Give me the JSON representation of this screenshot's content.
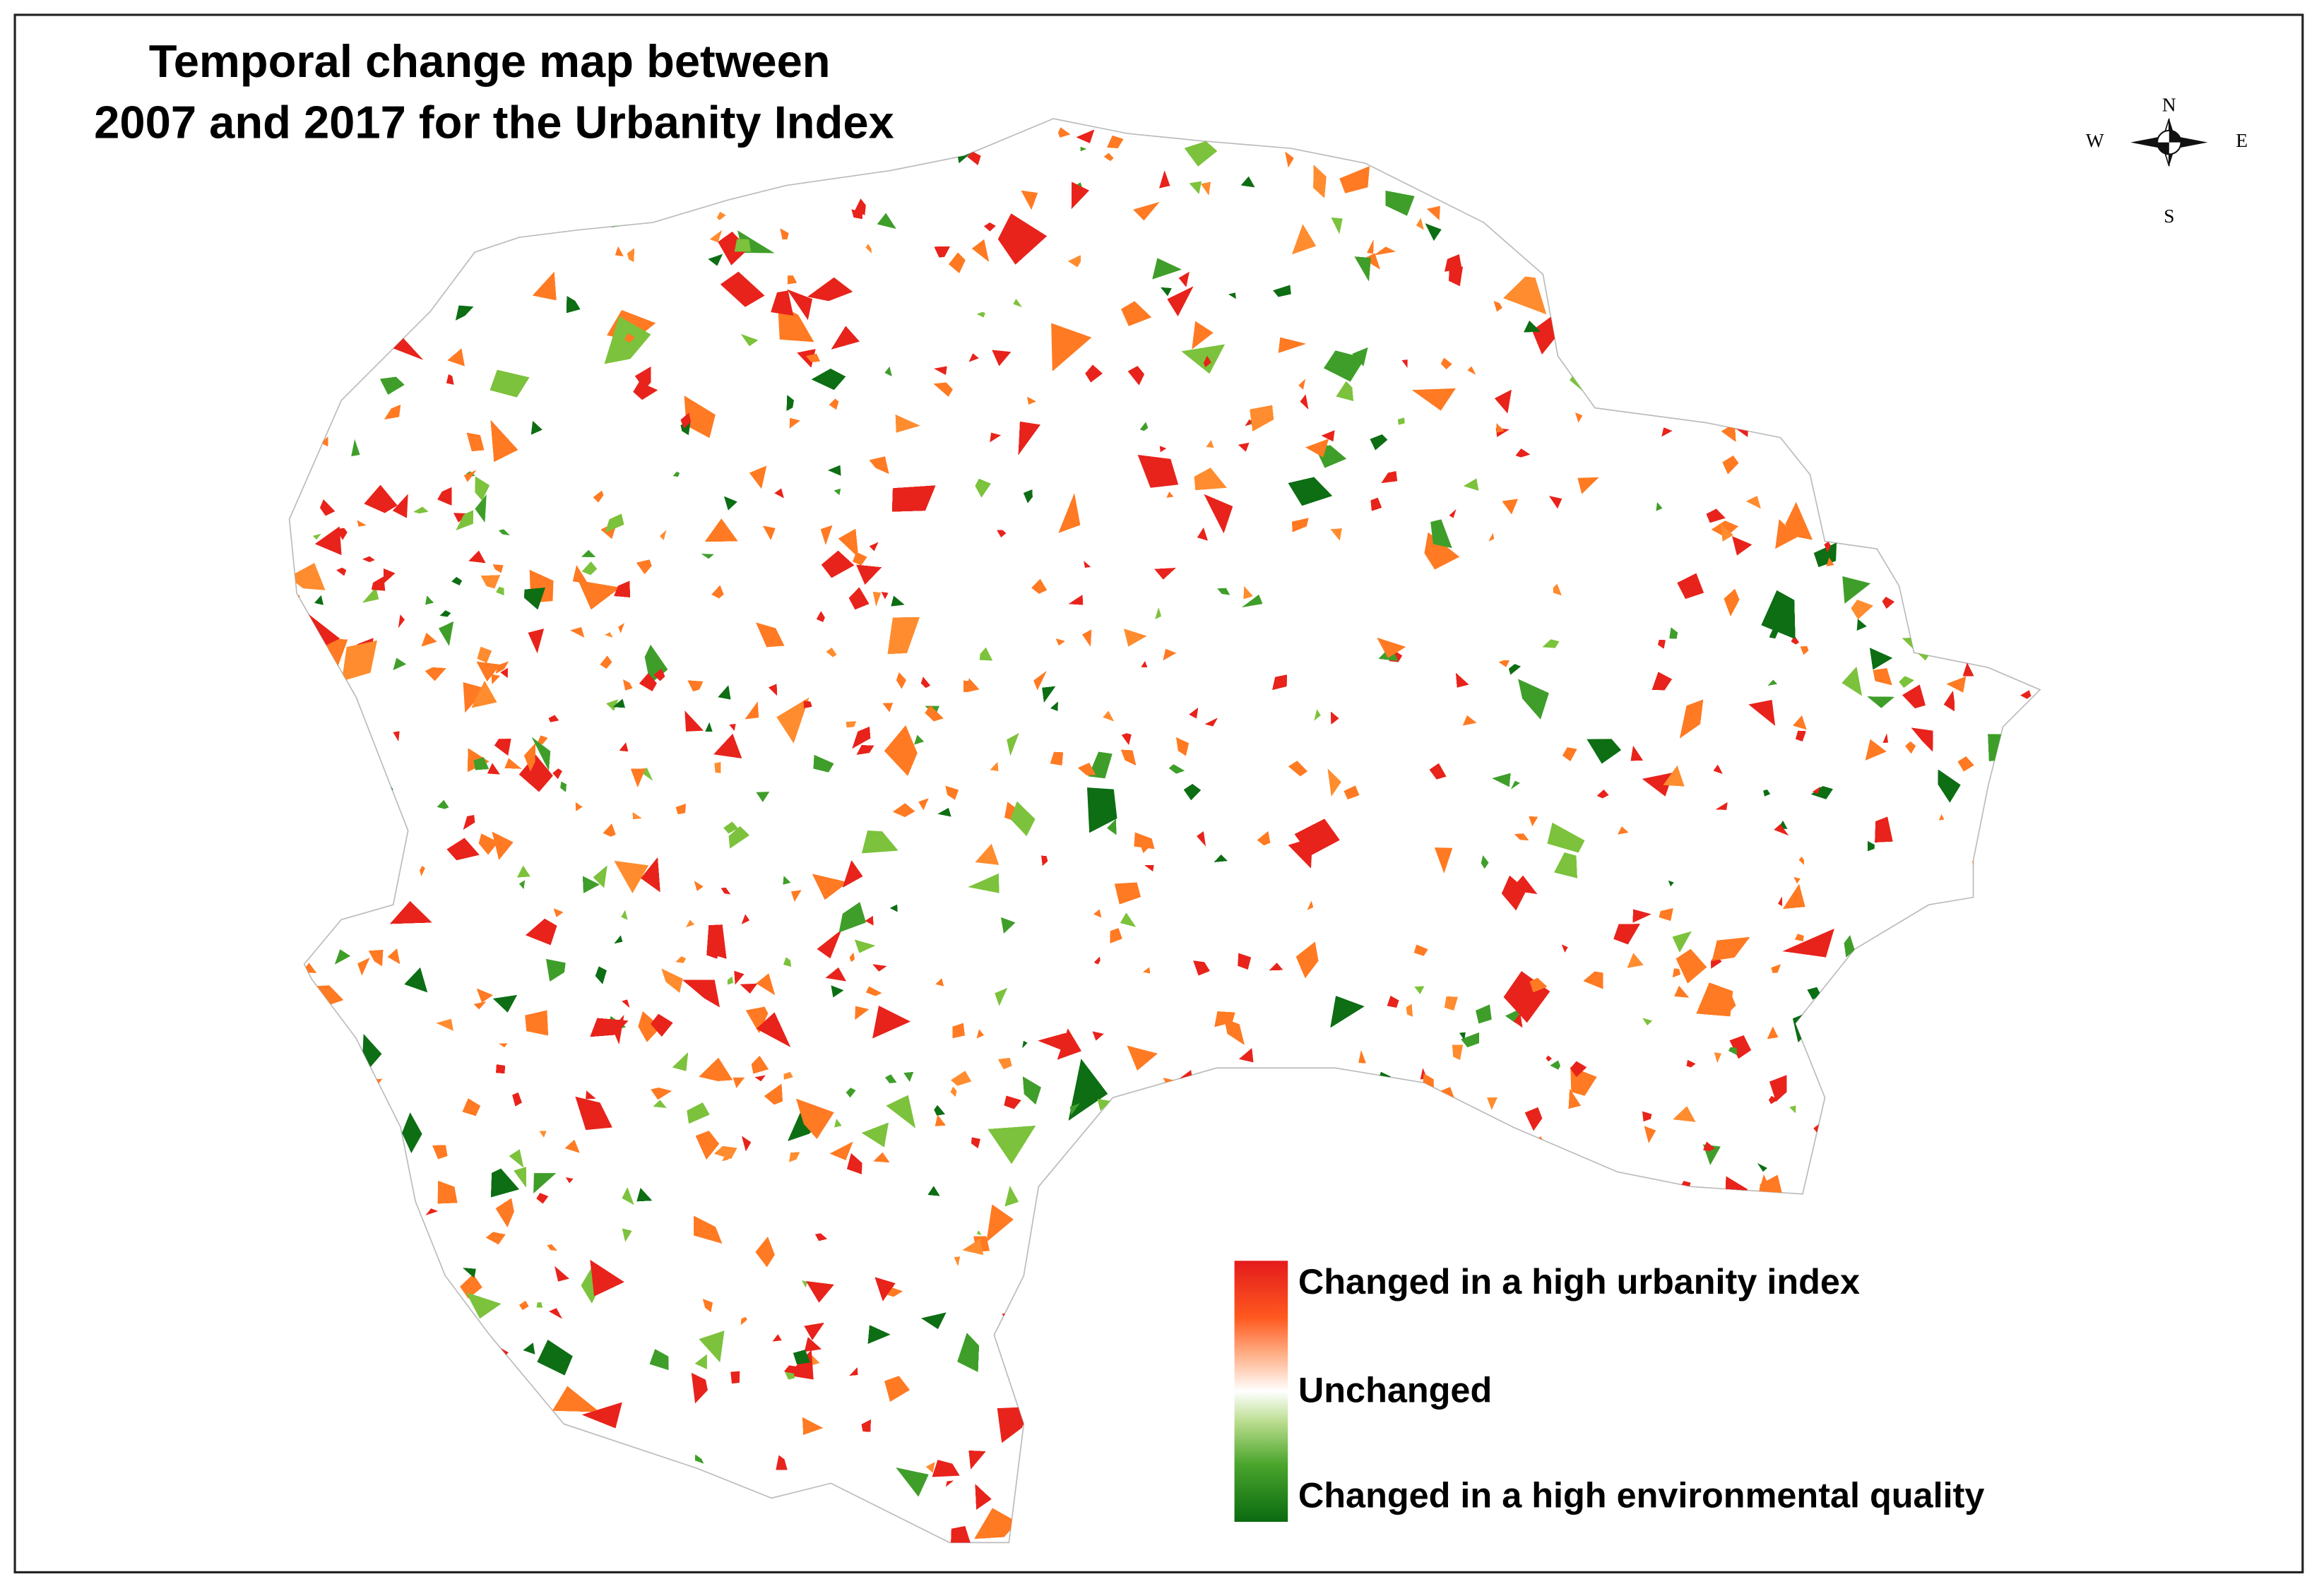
{
  "map": {
    "title": [
      "Temporal change map between",
      "2007 and 2017  for the Urbanity Index"
    ],
    "compass": {
      "north": "N",
      "south": "S",
      "east": "E",
      "west": "W"
    },
    "legend": [
      "Changed in a high urbanity index",
      "Unchanged",
      "Changed in a high environmental quality"
    ]
  }
}
